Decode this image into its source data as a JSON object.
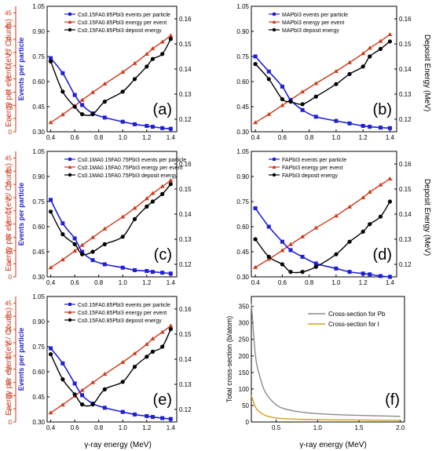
{
  "figure": {
    "left_axis_label": "Energy per event (eV / Counts)",
    "right_axis_label": "Deposit Energy (MeV)",
    "bottom_axis_label": "γ-ray energy (MeV)",
    "colors": {
      "events": "#1f1fd6",
      "energy": "#cc3a1a",
      "deposit": "#000000",
      "pb": "#8c8c8c",
      "i": "#d4a017"
    }
  },
  "chart_data": [
    {
      "id": "a",
      "panel_label": "(a)",
      "type": "line",
      "legend": [
        "Cs0.15FA0.85PbI3 events per particle",
        "Cs0.15FA0.85PbI3 energy per event",
        "Cs0.15FA0.85PbI3 deposit energy"
      ],
      "left_ticks": [
        "0",
        "5",
        "10",
        "15",
        "20",
        "25",
        "30",
        "35",
        "40",
        "45"
      ],
      "left_ylim": [
        0,
        47.5
      ],
      "mid_ticks": [
        "0.30",
        "0.45",
        "0.60",
        "0.75",
        "0.90",
        "1.05"
      ],
      "mid_ylim": [
        0.3,
        1.05
      ],
      "mid_label": "Events per particle",
      "right_ticks": [
        "0.12",
        "0.13",
        "0.14",
        "0.15",
        "0.16"
      ],
      "right_ylim": [
        0.115,
        0.165
      ],
      "x_ticks": [
        "0.4",
        "0.6",
        "0.8",
        "1.0",
        "1.2",
        "1.4"
      ],
      "xlim": [
        0.37,
        1.45
      ],
      "x": [
        0.4,
        0.5,
        0.6,
        0.662,
        0.75,
        0.85,
        1.0,
        1.1,
        1.2,
        1.25,
        1.33,
        1.4
      ],
      "events": [
        0.74,
        0.65,
        0.52,
        0.46,
        0.41,
        0.385,
        0.36,
        0.345,
        0.335,
        0.33,
        0.322,
        0.318
      ],
      "energy": [
        3.5,
        6.5,
        9.8,
        12.0,
        14.9,
        18.1,
        22.6,
        25.9,
        29.4,
        31.5,
        34.0,
        36.4
      ],
      "deposit": [
        0.143,
        0.131,
        0.125,
        0.122,
        0.122,
        0.127,
        0.131,
        0.136,
        0.141,
        0.144,
        0.146,
        0.152
      ]
    },
    {
      "id": "b",
      "panel_label": "(b)",
      "type": "line",
      "legend": [
        "MAPbI3 events per particle",
        "MAPbI3 energy per event",
        "MAPbI3 deposit energy"
      ],
      "mid_ticks": [
        "0.30",
        "0.45",
        "0.60",
        "0.75",
        "0.90",
        "1.05"
      ],
      "mid_ylim": [
        0.3,
        1.05
      ],
      "right_ticks": [
        "0.12",
        "0.13",
        "0.14",
        "0.15",
        "0.16"
      ],
      "right_ylim": [
        0.115,
        0.165
      ],
      "x_ticks": [
        "0.4",
        "0.6",
        "0.8",
        "1.0",
        "1.2",
        "1.4"
      ],
      "xlim": [
        0.37,
        1.45
      ],
      "x": [
        0.4,
        0.5,
        0.6,
        0.662,
        0.75,
        0.85,
        1.0,
        1.1,
        1.2,
        1.25,
        1.33,
        1.4
      ],
      "events": [
        0.75,
        0.66,
        0.57,
        0.49,
        0.43,
        0.39,
        0.365,
        0.35,
        0.335,
        0.33,
        0.325,
        0.322
      ],
      "energy": [
        3.5,
        6.6,
        10.0,
        12.1,
        15.1,
        18.3,
        22.9,
        26.2,
        29.6,
        31.7,
        34.3,
        36.8
      ],
      "deposit": [
        0.142,
        0.136,
        0.128,
        0.127,
        0.126,
        0.129,
        0.134,
        0.138,
        0.141,
        0.145,
        0.148,
        0.151
      ]
    },
    {
      "id": "c",
      "panel_label": "(c)",
      "type": "line",
      "legend": [
        "Cs0.1MA0.15FA0.75PbI3 events per particle",
        "Cs0.1MA0.15FA0.75PbI3 energy per event",
        "Cs0.1MA0.15FA0.75PbI3 deposit energy"
      ],
      "left_ticks": [
        "0",
        "5",
        "10",
        "15",
        "20",
        "25",
        "30",
        "35",
        "40",
        "45"
      ],
      "left_ylim": [
        0,
        47.5
      ],
      "mid_ticks": [
        "0.30",
        "0.45",
        "0.60",
        "0.75",
        "0.90",
        "1.05"
      ],
      "mid_ylim": [
        0.3,
        1.05
      ],
      "mid_label": "Events per particle",
      "right_ticks": [
        "0.12",
        "0.13",
        "0.14",
        "0.15",
        "0.16"
      ],
      "right_ylim": [
        0.115,
        0.165
      ],
      "x_ticks": [
        "0.4",
        "0.6",
        "0.8",
        "1.0",
        "1.2",
        "1.4"
      ],
      "xlim": [
        0.37,
        1.45
      ],
      "x": [
        0.4,
        0.5,
        0.6,
        0.662,
        0.75,
        0.85,
        1.0,
        1.1,
        1.2,
        1.25,
        1.33,
        1.4
      ],
      "events": [
        0.76,
        0.62,
        0.53,
        0.45,
        0.4,
        0.375,
        0.355,
        0.34,
        0.335,
        0.33,
        0.325,
        0.32
      ],
      "energy": [
        3.5,
        6.5,
        9.8,
        12.0,
        14.9,
        18.2,
        22.7,
        26.0,
        29.6,
        31.6,
        34.2,
        36.5
      ],
      "deposit": [
        0.141,
        0.132,
        0.128,
        0.124,
        0.125,
        0.128,
        0.131,
        0.138,
        0.143,
        0.145,
        0.148,
        0.152
      ]
    },
    {
      "id": "d",
      "panel_label": "(d)",
      "type": "line",
      "legend": [
        "FAPbI3 events per particle",
        "FAPbI3 energy per event",
        "FAPbI3 deposit energy"
      ],
      "mid_ticks": [
        "0.30",
        "0.45",
        "0.60",
        "0.75",
        "0.90",
        "1.05"
      ],
      "mid_ylim": [
        0.3,
        1.05
      ],
      "right_ticks": [
        "0.12",
        "0.13",
        "0.14",
        "0.15",
        "0.16"
      ],
      "right_ylim": [
        0.115,
        0.165
      ],
      "x_ticks": [
        "0.4",
        "0.6",
        "0.8",
        "1.0",
        "1.2",
        "1.4"
      ],
      "xlim": [
        0.37,
        1.45
      ],
      "x": [
        0.4,
        0.5,
        0.6,
        0.662,
        0.75,
        0.85,
        1.0,
        1.1,
        1.2,
        1.25,
        1.33,
        1.4
      ],
      "events": [
        0.71,
        0.6,
        0.51,
        0.46,
        0.42,
        0.38,
        0.35,
        0.33,
        0.32,
        0.315,
        0.305,
        0.3
      ],
      "energy": [
        3.6,
        6.7,
        10.0,
        12.3,
        15.2,
        18.5,
        23.1,
        26.5,
        30.0,
        32.1,
        34.8,
        37.1
      ],
      "deposit": [
        0.13,
        0.123,
        0.12,
        0.117,
        0.117,
        0.119,
        0.124,
        0.129,
        0.133,
        0.136,
        0.139,
        0.145
      ]
    },
    {
      "id": "e",
      "panel_label": "(e)",
      "type": "line",
      "legend": [
        "Cs0.15FA0.85PbI3 events per particle",
        "Cs0.15FA0.85PbI3 energy per event",
        "Cs0.15FA0.85PbI3 deposit energy"
      ],
      "left_ticks": [
        "0",
        "5",
        "10",
        "15",
        "20",
        "25",
        "30",
        "35",
        "40",
        "45"
      ],
      "left_ylim": [
        0,
        47.5
      ],
      "mid_ticks": [
        "0.30",
        "0.45",
        "0.60",
        "0.75",
        "0.90",
        "1.05"
      ],
      "mid_ylim": [
        0.3,
        1.05
      ],
      "mid_label": "Events per particle",
      "right_ticks": [
        "0.12",
        "0.13",
        "0.14",
        "0.15",
        "0.16"
      ],
      "right_ylim": [
        0.115,
        0.165
      ],
      "x_ticks": [
        "0.4",
        "0.6",
        "0.8",
        "1.0",
        "1.2",
        "1.4"
      ],
      "xlim": [
        0.37,
        1.45
      ],
      "x": [
        0.4,
        0.5,
        0.6,
        0.662,
        0.75,
        0.85,
        1.0,
        1.1,
        1.2,
        1.25,
        1.33,
        1.4
      ],
      "events": [
        0.74,
        0.65,
        0.53,
        0.46,
        0.41,
        0.385,
        0.36,
        0.345,
        0.335,
        0.33,
        0.323,
        0.318
      ],
      "energy": [
        3.5,
        6.5,
        9.8,
        12.0,
        14.9,
        18.1,
        22.6,
        25.9,
        29.4,
        31.5,
        34.0,
        36.4
      ],
      "deposit": [
        0.142,
        0.132,
        0.126,
        0.122,
        0.122,
        0.128,
        0.131,
        0.137,
        0.141,
        0.143,
        0.145,
        0.152
      ]
    },
    {
      "id": "f",
      "panel_label": "(f)",
      "type": "line",
      "ylabel": "Total cross-section (b/atom)",
      "legend": [
        "Cross-section for Pb",
        "Cross-section for I"
      ],
      "x_ticks": [
        "0.5",
        "1.0",
        "1.5",
        "2.0"
      ],
      "xlim": [
        0.2,
        2.05
      ],
      "y_ticks": [
        "0",
        "50",
        "100",
        "150",
        "200",
        "250",
        "300",
        "350"
      ],
      "ylim": [
        0,
        380
      ],
      "x": [
        0.2,
        0.25,
        0.3,
        0.35,
        0.4,
        0.5,
        0.6,
        0.8,
        1.0,
        1.25,
        1.5,
        2.0
      ],
      "pb": [
        360,
        200,
        140,
        100,
        78,
        52,
        40,
        30,
        25,
        22,
        20,
        17
      ],
      "iodine": [
        80,
        45,
        30,
        22,
        17,
        12,
        10,
        8,
        7,
        6.5,
        6,
        5
      ]
    }
  ]
}
